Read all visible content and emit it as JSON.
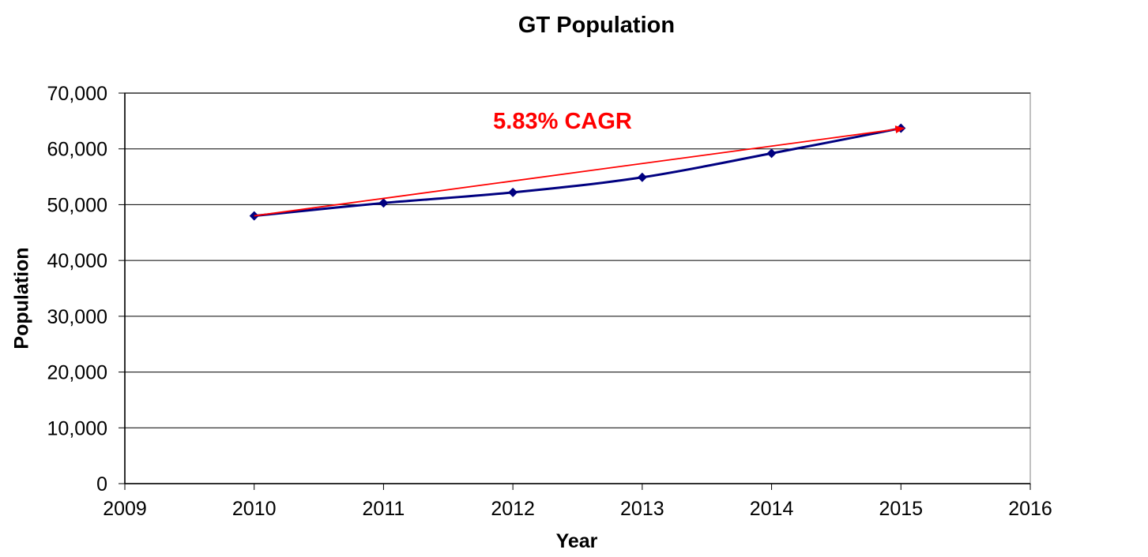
{
  "chart_data": {
    "type": "line",
    "title": "GT Population",
    "xlabel": "Year",
    "ylabel": "Population",
    "xlim": [
      2009,
      2016
    ],
    "ylim": [
      0,
      70000
    ],
    "x_ticks": [
      2009,
      2010,
      2011,
      2012,
      2013,
      2014,
      2015,
      2016
    ],
    "y_ticks": [
      0,
      10000,
      20000,
      30000,
      40000,
      50000,
      60000,
      70000
    ],
    "y_tick_labels": [
      "0",
      "10,000",
      "20,000",
      "30,000",
      "40,000",
      "50,000",
      "60,000",
      "70,000"
    ],
    "grid": "horizontal",
    "legend": "none",
    "series": [
      {
        "x": [
          2010,
          2011,
          2012,
          2013,
          2014,
          2015
        ],
        "y": [
          48000,
          50300,
          52200,
          54900,
          59200,
          63700
        ],
        "color": "#000080",
        "marker": "diamond"
      }
    ],
    "annotations": [
      {
        "text": "5.83% CAGR",
        "color": "#ff0000",
        "arrow_from": [
          2010,
          48000
        ],
        "arrow_to": [
          2015,
          63700
        ]
      }
    ]
  }
}
